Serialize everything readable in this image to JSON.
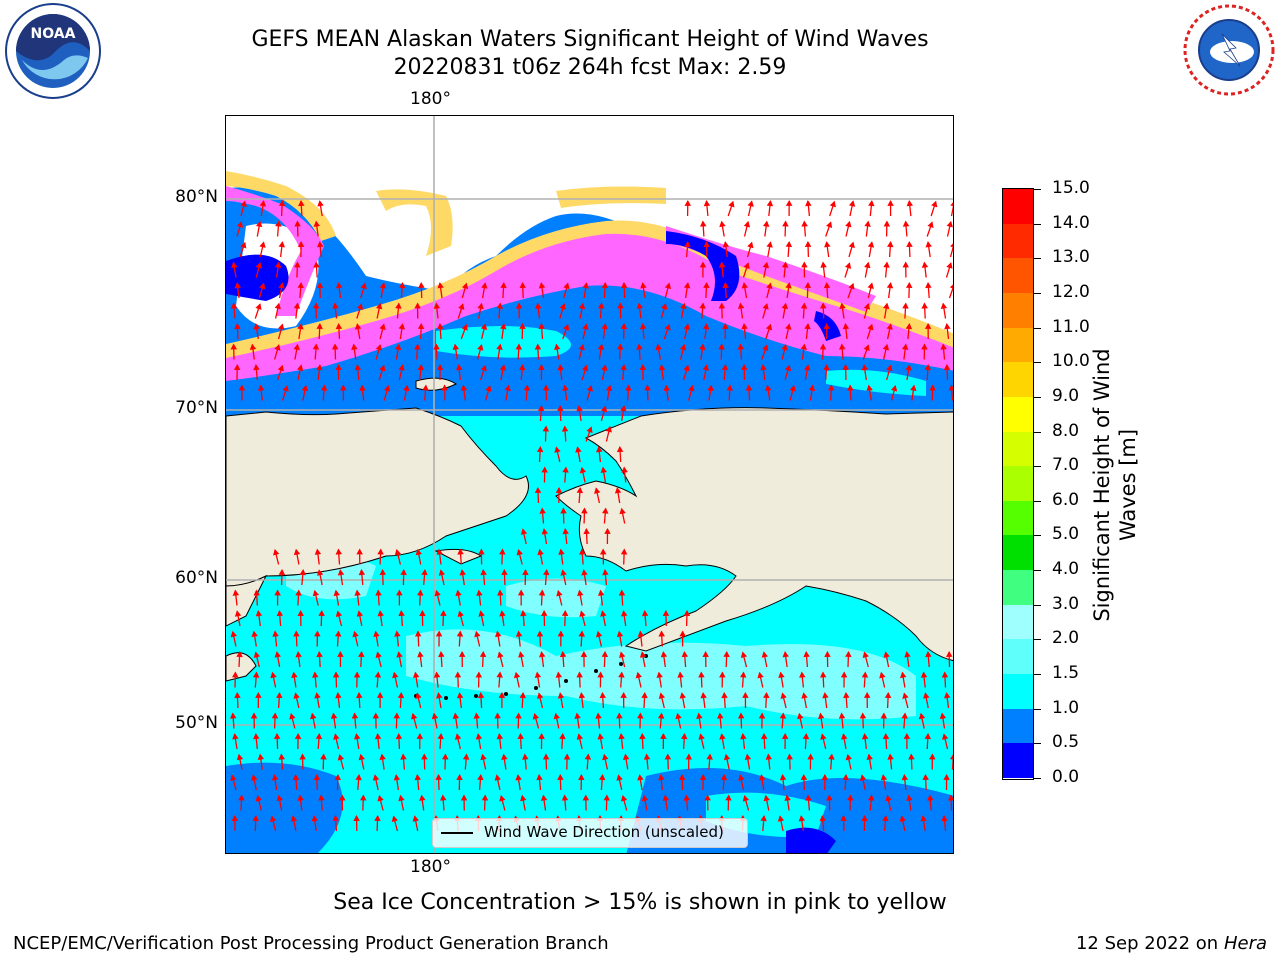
{
  "header": {
    "title_line1": "GEFS MEAN Alaskan Waters Significant Height of Wind Waves",
    "title_line2": "20220831 t06z 264h fcst   Max: 2.59"
  },
  "logos": {
    "noaa": {
      "text": "NOAA",
      "ring_text": "NATIONAL OCEANIC AND ATMOSPHERIC ADMINISTRATION · U.S. DEPARTMENT OF COMMERCE"
    },
    "nws": {
      "ring_text": "NATIONAL WEATHER SERVICE"
    }
  },
  "map": {
    "lon_label_top": "180°",
    "lon_label_bottom": "180°",
    "lat_labels": [
      "80°N",
      "70°N",
      "60°N",
      "50°N"
    ],
    "colors": {
      "land": "#efecdc",
      "ocean_low": "#0000ff",
      "ocean_mid": "#0080ff",
      "ocean_high": "#00ffff",
      "ocean_higher": "#7fffff",
      "ice_pink": "#ff66ff",
      "ice_yellow": "#ffd966",
      "arrow": "#ff0000",
      "grid": "#b0b0b0"
    }
  },
  "legend": {
    "label": "Wind Wave Direction (unscaled)"
  },
  "colorbar": {
    "label_line1": "Significant Height of Wind",
    "label_line2": "Waves [m]",
    "ticks": [
      "15.0",
      "14.0",
      "13.0",
      "12.0",
      "11.0",
      "10.0",
      "9.0",
      "8.0",
      "7.0",
      "6.0",
      "5.0",
      "4.0",
      "3.0",
      "2.0",
      "1.5",
      "1.0",
      "0.5",
      "0.0"
    ],
    "colors": [
      "#ff0000",
      "#ff2a00",
      "#ff5500",
      "#ff8000",
      "#ffaa00",
      "#ffd500",
      "#ffff00",
      "#d5ff00",
      "#aaff00",
      "#55ff00",
      "#00e000",
      "#40ff80",
      "#9fffff",
      "#5ffffb",
      "#00ffff",
      "#0080ff",
      "#0000ff"
    ]
  },
  "note": "Sea Ice Concentration > 15% is shown in pink to yellow",
  "footer": {
    "left": "NCEP/EMC/Verification Post Processing Product Generation Branch",
    "right_date": "12 Sep 2022 on",
    "right_machine": "Hera"
  }
}
